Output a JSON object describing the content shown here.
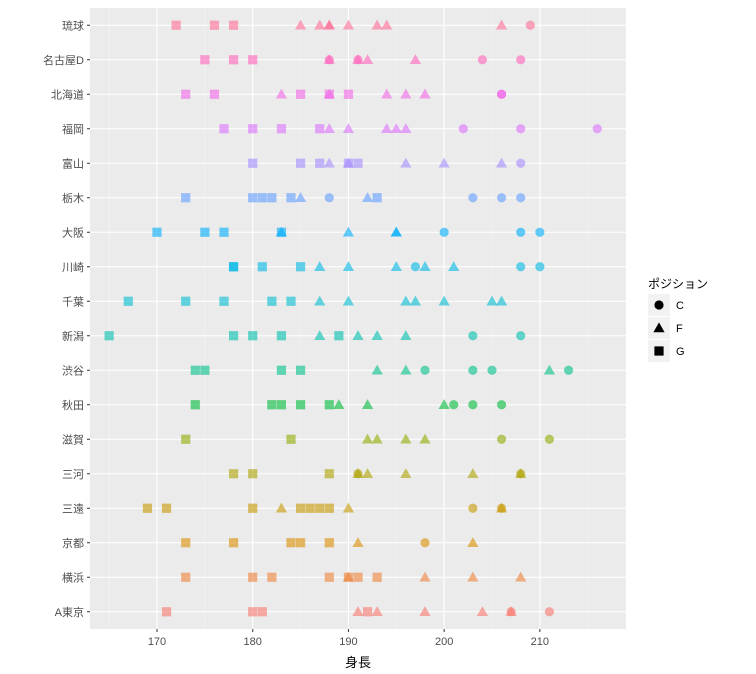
{
  "chart_data": {
    "type": "scatter",
    "xlabel": "身長",
    "ylabel": "",
    "xlim": [
      163,
      219
    ],
    "x_ticks": [
      170,
      180,
      190,
      200,
      210
    ],
    "categories": [
      "A東京",
      "横浜",
      "京都",
      "三遠",
      "三河",
      "滋賀",
      "秋田",
      "渋谷",
      "新潟",
      "千葉",
      "川崎",
      "大阪",
      "栃木",
      "富山",
      "福岡",
      "北海道",
      "名古屋D",
      "琉球"
    ],
    "category_colors": {
      "A東京": "#F8766D",
      "横浜": "#EC8239",
      "京都": "#DB8E00",
      "三遠": "#C79800",
      "三河": "#AEA200",
      "滋賀": "#8FAA00",
      "秋田": "#00BA38",
      "渋谷": "#00C08B",
      "新潟": "#00BFAE",
      "千葉": "#00BDD0",
      "川崎": "#00B8E5",
      "大阪": "#00ADFA",
      "栃木": "#619CFF",
      "富山": "#A58AFF",
      "福岡": "#DB72FB",
      "北海道": "#F265E7",
      "名古屋D": "#FF62BC",
      "琉球": "#FF6C93"
    },
    "legend": {
      "title": "ポジション",
      "position": "right",
      "items": [
        {
          "label": "C",
          "shape": "circle"
        },
        {
          "label": "F",
          "shape": "triangle"
        },
        {
          "label": "G",
          "shape": "square"
        }
      ]
    },
    "grid": true,
    "series": [
      {
        "team": "琉球",
        "G": [
          172,
          176,
          178
        ],
        "F": [
          185,
          187,
          188,
          188,
          190,
          193,
          194,
          206
        ],
        "C": [
          209
        ]
      },
      {
        "team": "名古屋D",
        "G": [
          175,
          178,
          180
        ],
        "F": [
          188,
          191,
          192,
          197
        ],
        "C": [
          188,
          191,
          204,
          208
        ]
      },
      {
        "team": "北海道",
        "G": [
          173,
          176,
          185,
          188,
          190
        ],
        "F": [
          183,
          188,
          194,
          196,
          198
        ],
        "C": [
          206,
          206
        ]
      },
      {
        "team": "福岡",
        "G": [
          177,
          180,
          183,
          187
        ],
        "F": [
          188,
          190,
          194,
          195,
          196
        ],
        "C": [
          202,
          208,
          216
        ]
      },
      {
        "team": "富山",
        "G": [
          180,
          185,
          187,
          190,
          191
        ],
        "F": [
          188,
          190,
          196,
          200,
          206
        ],
        "C": [
          208
        ]
      },
      {
        "team": "栃木",
        "G": [
          173,
          180,
          181,
          182,
          184,
          193
        ],
        "F": [
          185,
          192
        ],
        "C": [
          188,
          203,
          206,
          208
        ]
      },
      {
        "team": "大阪",
        "G": [
          170,
          175,
          177,
          183
        ],
        "F": [
          183,
          190,
          195,
          195
        ],
        "C": [
          200,
          208,
          210
        ]
      },
      {
        "team": "川崎",
        "G": [
          178,
          178,
          181,
          185
        ],
        "F": [
          187,
          190,
          195,
          198,
          201
        ],
        "C": [
          197,
          208,
          210
        ]
      },
      {
        "team": "千葉",
        "G": [
          167,
          173,
          177,
          182,
          184
        ],
        "F": [
          187,
          190,
          196,
          197,
          200,
          205,
          206
        ]
      },
      {
        "team": "新潟",
        "G": [
          165,
          178,
          180,
          183,
          189
        ],
        "F": [
          187,
          191,
          193,
          196
        ],
        "C": [
          203,
          208
        ]
      },
      {
        "team": "渋谷",
        "G": [
          174,
          175,
          183,
          185
        ],
        "F": [
          193,
          196,
          211
        ],
        "C": [
          198,
          203,
          205,
          213
        ]
      },
      {
        "team": "秋田",
        "G": [
          174,
          182,
          183,
          185,
          188
        ],
        "F": [
          189,
          192,
          200
        ],
        "C": [
          201,
          203,
          206
        ]
      },
      {
        "team": "滋賀",
        "G": [
          173,
          184
        ],
        "F": [
          192,
          193,
          196,
          198
        ],
        "C": [
          206,
          211
        ]
      },
      {
        "team": "三河",
        "G": [
          178,
          180,
          188
        ],
        "F": [
          191,
          192,
          196,
          203,
          208
        ],
        "C": [
          191,
          208
        ]
      },
      {
        "team": "三遠",
        "G": [
          169,
          171,
          180,
          185,
          186,
          187,
          188
        ],
        "F": [
          183,
          190,
          206
        ],
        "C": [
          203,
          206
        ]
      },
      {
        "team": "京都",
        "G": [
          173,
          178,
          184,
          185,
          188
        ],
        "F": [
          191,
          203
        ],
        "C": [
          198
        ]
      },
      {
        "team": "横浜",
        "G": [
          173,
          180,
          182,
          188,
          190,
          191,
          193
        ],
        "F": [
          190,
          198,
          203,
          208
        ]
      },
      {
        "team": "A東京",
        "G": [
          171,
          180,
          181,
          192
        ],
        "F": [
          191,
          193,
          198,
          204,
          207
        ],
        "C": [
          207,
          211
        ]
      }
    ]
  }
}
